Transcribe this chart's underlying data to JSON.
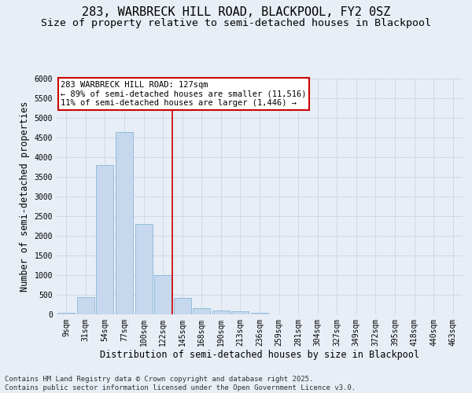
{
  "title_line1": "283, WARBRECK HILL ROAD, BLACKPOOL, FY2 0SZ",
  "title_line2": "Size of property relative to semi-detached houses in Blackpool",
  "xlabel": "Distribution of semi-detached houses by size in Blackpool",
  "ylabel": "Number of semi-detached properties",
  "categories": [
    "9sqm",
    "31sqm",
    "54sqm",
    "77sqm",
    "100sqm",
    "122sqm",
    "145sqm",
    "168sqm",
    "190sqm",
    "213sqm",
    "236sqm",
    "259sqm",
    "281sqm",
    "304sqm",
    "327sqm",
    "349sqm",
    "372sqm",
    "395sqm",
    "418sqm",
    "440sqm",
    "463sqm"
  ],
  "values": [
    50,
    450,
    3800,
    4650,
    2300,
    1000,
    420,
    170,
    100,
    80,
    50,
    10,
    5,
    2,
    1,
    1,
    0,
    0,
    0,
    0,
    0
  ],
  "bar_color": "#c5d8ed",
  "bar_edge_color": "#7aafd4",
  "grid_color": "#d0d8e8",
  "background_color": "#e8eef5",
  "vline_x": 5.5,
  "vline_color": "#cc0000",
  "annotation_line1": "283 WARBRECK HILL ROAD: 127sqm",
  "annotation_line2": "← 89% of semi-detached houses are smaller (11,516)",
  "annotation_line3": "11% of semi-detached houses are larger (1,446) →",
  "annotation_box_color": "#ffffff",
  "annotation_box_edge_color": "#cc0000",
  "footnote": "Contains HM Land Registry data © Crown copyright and database right 2025.\nContains public sector information licensed under the Open Government Licence v3.0.",
  "ylim": [
    0,
    6000
  ],
  "yticks": [
    0,
    500,
    1000,
    1500,
    2000,
    2500,
    3000,
    3500,
    4000,
    4500,
    5000,
    5500,
    6000
  ],
  "title_fontsize": 11,
  "subtitle_fontsize": 9.5,
  "axis_label_fontsize": 8.5,
  "tick_fontsize": 7,
  "annot_fontsize": 7.5,
  "footnote_fontsize": 6.5
}
